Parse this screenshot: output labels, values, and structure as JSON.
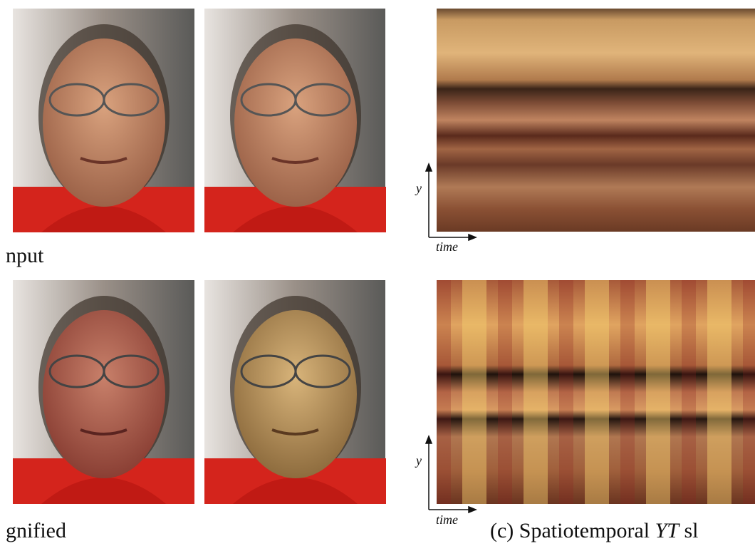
{
  "labels": {
    "input": "nput",
    "magnified": "gnified"
  },
  "slices": [
    {
      "y": "y",
      "time": "time"
    },
    {
      "y": "y",
      "time": "time"
    }
  ],
  "caption": {
    "prefix": "(c) Spatiotemporal",
    "italic": "YT",
    "suffix": "sl"
  }
}
